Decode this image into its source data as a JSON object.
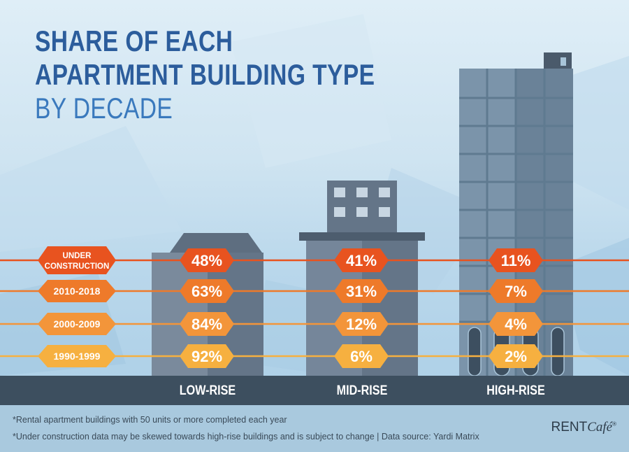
{
  "chart_data": {
    "type": "table",
    "title_lines": [
      "SHARE OF EACH",
      "APARTMENT BUILDING TYPE",
      "BY DECADE"
    ],
    "categories": [
      "LOW-RISE",
      "MID-RISE",
      "HIGH-RISE"
    ],
    "series": [
      {
        "name": "UNDER CONSTRUCTION",
        "values": [
          48,
          41,
          11
        ],
        "labels": [
          "48%",
          "41%",
          "11%"
        ],
        "color": "#e8531f"
      },
      {
        "name": "2010-2018",
        "values": [
          63,
          31,
          7
        ],
        "labels": [
          "63%",
          "31%",
          "7%"
        ],
        "color": "#ee7a2a"
      },
      {
        "name": "2000-2009",
        "values": [
          84,
          12,
          4
        ],
        "labels": [
          "84%",
          "12%",
          "4%"
        ],
        "color": "#f3953a"
      },
      {
        "name": "1990-1999",
        "values": [
          92,
          6,
          2
        ],
        "labels": [
          "92%",
          "6%",
          "2%"
        ],
        "color": "#f6b040"
      }
    ],
    "footnotes": [
      "*Rental apartment buildings with 50 units or more completed each year",
      "*Under construction data may be skewed towards high-rise buildings and is subject to change  |  Data source: Yardi Matrix"
    ]
  },
  "brand": {
    "rent": "RENT",
    "cafe": "Café"
  }
}
